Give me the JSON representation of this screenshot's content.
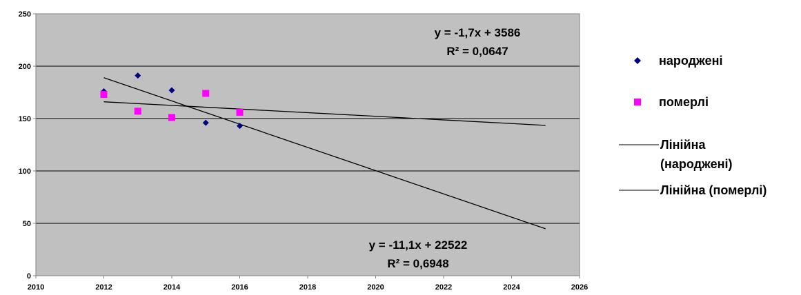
{
  "chart_data": {
    "type": "scatter",
    "title": "",
    "xlabel": "",
    "ylabel": "",
    "xlim": [
      2010,
      2026
    ],
    "ylim": [
      0,
      250
    ],
    "xticks": [
      2010,
      2012,
      2014,
      2016,
      2018,
      2020,
      2022,
      2024,
      2026
    ],
    "yticks": [
      0,
      50,
      100,
      150,
      200,
      250
    ],
    "grid": {
      "horizontal": true,
      "vertical": false
    },
    "plot_background": "#c0c0c0",
    "legend_position": "right",
    "series": [
      {
        "name": "народжені",
        "marker": "diamond",
        "color": "#000080",
        "x": [
          2012,
          2013,
          2014,
          2015,
          2016
        ],
        "y": [
          176,
          191,
          177,
          146,
          143
        ]
      },
      {
        "name": "померлі",
        "marker": "square",
        "color": "#ff00ff",
        "x": [
          2012,
          2013,
          2014,
          2015,
          2016
        ],
        "y": [
          173,
          157,
          151,
          174,
          156
        ]
      }
    ],
    "trendlines": [
      {
        "name": "Лінійна (народжені)",
        "legend_lines": [
          "Лінійна",
          "(народжені)"
        ],
        "type": "linear",
        "slope": -11.1,
        "intercept": 22522,
        "x_range": [
          2012,
          2025
        ],
        "y_range": [
          189,
          44.8
        ],
        "color": "#000000",
        "equation": "y = -11,1x + 22522",
        "r_squared": "R² = 0,6948"
      },
      {
        "name": "Лінійна (померлі)",
        "legend_lines": [
          "Лінійна (померлі)"
        ],
        "type": "linear",
        "slope": -1.7,
        "intercept": 3586,
        "x_range": [
          2012,
          2025
        ],
        "y_range": [
          166,
          143.5
        ],
        "color": "#000000",
        "equation": "y = -1,7x + 3586",
        "r_squared": "R² = 0,0647"
      }
    ],
    "annotations": [
      {
        "id": "eq-born",
        "lines": [
          "y = -11,1x + 22522",
          "R² = 0,6948"
        ]
      },
      {
        "id": "eq-died",
        "lines": [
          "y = -1,7x + 3586",
          "R² = 0,0647"
        ]
      }
    ]
  }
}
